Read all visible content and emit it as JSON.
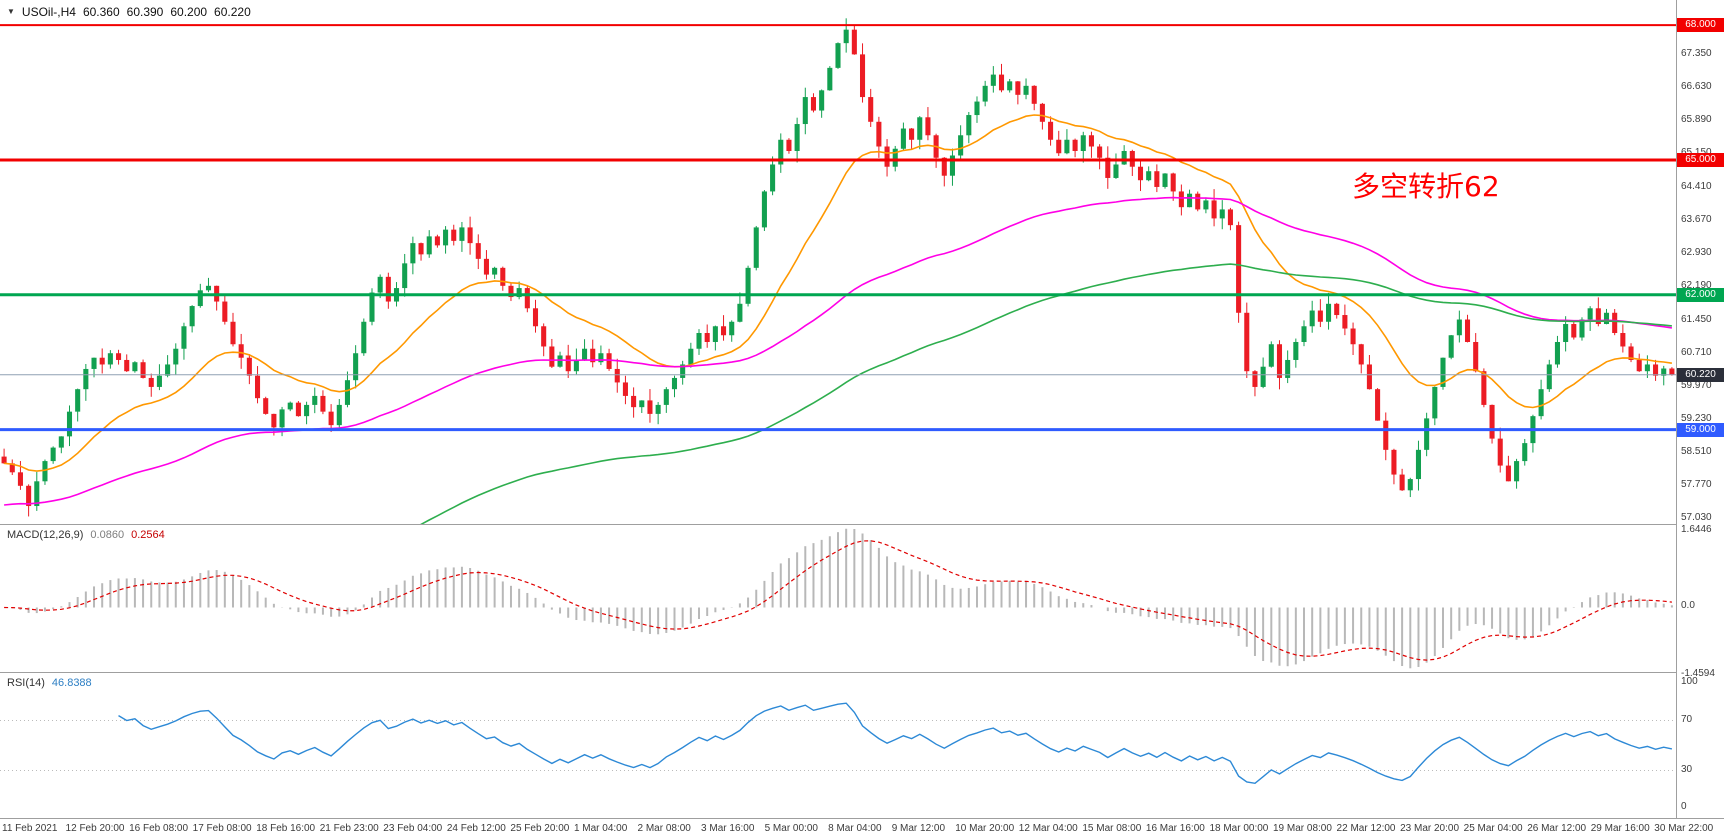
{
  "header": {
    "dropdown_icon": "▼",
    "symbol": "USOil-,H4",
    "open": "60.360",
    "high": "60.390",
    "low": "60.200",
    "close": "60.220"
  },
  "annotation": {
    "text": "多空转折62",
    "color": "#ff0000"
  },
  "panels": {
    "macd": {
      "label": "MACD(12,26,9)",
      "main_value": "0.0860",
      "signal_value": "0.2564"
    },
    "rsi": {
      "label": "RSI(14)",
      "value": "46.8388"
    }
  },
  "chart_data": {
    "type": "candlestick",
    "title": "USOil-,H4",
    "symbol": "USOil-",
    "timeframe": "H4",
    "price_range": [
      56.9,
      68.56
    ],
    "first_open": 58.4,
    "wick_base": 0.26,
    "closes": [
      58.25,
      58.05,
      57.75,
      57.3,
      57.85,
      58.3,
      58.6,
      58.85,
      59.4,
      59.9,
      60.35,
      60.6,
      60.45,
      60.7,
      60.55,
      60.3,
      60.5,
      60.15,
      59.95,
      60.2,
      60.45,
      60.8,
      61.3,
      61.75,
      62.1,
      62.2,
      61.85,
      61.4,
      60.9,
      60.6,
      60.2,
      59.7,
      59.35,
      59.05,
      59.45,
      59.6,
      59.3,
      59.55,
      59.75,
      59.4,
      59.1,
      59.55,
      60.1,
      60.7,
      61.4,
      62.05,
      62.4,
      61.85,
      62.15,
      62.7,
      63.15,
      62.9,
      63.3,
      63.1,
      63.45,
      63.2,
      63.5,
      63.15,
      62.8,
      62.45,
      62.6,
      62.2,
      61.95,
      62.15,
      61.7,
      61.3,
      60.85,
      60.4,
      60.65,
      60.3,
      60.55,
      60.8,
      60.5,
      60.7,
      60.35,
      60.05,
      59.75,
      59.5,
      59.65,
      59.35,
      59.55,
      59.9,
      60.15,
      60.45,
      60.8,
      61.15,
      60.95,
      61.3,
      61.1,
      61.4,
      61.8,
      62.6,
      63.5,
      64.3,
      64.9,
      65.45,
      65.2,
      65.8,
      66.4,
      66.1,
      66.55,
      67.05,
      67.6,
      67.9,
      67.35,
      66.4,
      65.85,
      65.3,
      64.85,
      65.25,
      65.7,
      65.45,
      65.95,
      65.55,
      65.05,
      64.65,
      65.1,
      65.55,
      66.0,
      66.3,
      66.65,
      66.9,
      66.55,
      66.75,
      66.45,
      66.65,
      66.25,
      65.85,
      65.45,
      65.15,
      65.45,
      65.2,
      65.55,
      65.3,
      65.05,
      64.6,
      64.9,
      65.2,
      64.85,
      64.55,
      64.75,
      64.4,
      64.7,
      64.3,
      63.95,
      64.25,
      63.9,
      64.1,
      63.7,
      63.9,
      63.55,
      61.6,
      60.3,
      59.95,
      60.4,
      60.9,
      60.15,
      60.55,
      60.95,
      61.3,
      61.65,
      61.4,
      61.8,
      61.55,
      61.25,
      60.9,
      60.45,
      59.9,
      59.2,
      58.55,
      58.0,
      57.65,
      57.9,
      58.55,
      59.25,
      59.95,
      60.6,
      61.1,
      61.45,
      60.95,
      60.3,
      59.55,
      58.8,
      58.2,
      57.85,
      58.3,
      58.7,
      59.3,
      59.9,
      60.45,
      60.95,
      61.35,
      61.05,
      61.45,
      61.7,
      61.35,
      61.6,
      61.15,
      60.85,
      60.55,
      60.3,
      60.45,
      60.2,
      60.36,
      60.22
    ],
    "last_bar": {
      "open": 60.36,
      "high": 60.39,
      "low": 60.2,
      "close": 60.22
    },
    "current_price": 60.22,
    "hlines": [
      {
        "price": 68.0,
        "color": "#f20000",
        "width": 2,
        "label": "68.000"
      },
      {
        "price": 65.0,
        "color": "#f20000",
        "width": 3,
        "label": "65.000"
      },
      {
        "price": 62.0,
        "color": "#00a651",
        "width": 3,
        "label": "62.000"
      },
      {
        "price": 59.0,
        "color": "#2f5bff",
        "width": 3,
        "label": "59.000"
      }
    ],
    "moving_averages": [
      {
        "name": "ma-fast",
        "period": 20,
        "color": "#ff9800",
        "seed": null
      },
      {
        "name": "ma-medium",
        "period": 80,
        "color": "#ff00e6",
        "seed": 57.3
      },
      {
        "name": "ma-long",
        "period": 130,
        "color": "#2eae4e",
        "seed": 52.5
      }
    ],
    "macd": {
      "fast": 12,
      "slow": 26,
      "signal": 9
    },
    "rsi": {
      "period": 14,
      "levels": [
        70,
        30
      ],
      "range": [
        0,
        100
      ]
    },
    "colors": {
      "up": "#12a050",
      "down": "#ec1c24",
      "macd_hist": "#b8b8b8",
      "macd_signal": "#e00000",
      "rsi_line": "#2d89d6",
      "current_price_line": "#8fa0b3",
      "current_price_tag_bg": "#2b2f3a"
    },
    "price_axis_labels": [
      "67.350",
      "66.630",
      "65.890",
      "65.150",
      "64.410",
      "63.670",
      "62.930",
      "62.190",
      "61.450",
      "60.710",
      "59.970",
      "59.230",
      "58.510",
      "57.770",
      "57.030"
    ],
    "price_axis_tags": [
      {
        "text": "68.000",
        "price": 68.0,
        "bg": "#f20000"
      },
      {
        "text": "65.000",
        "price": 65.0,
        "bg": "#f20000"
      },
      {
        "text": "62.000",
        "price": 62.0,
        "bg": "#00a651"
      },
      {
        "text": "59.000",
        "price": 59.0,
        "bg": "#2f5bff"
      },
      {
        "text": "60.220",
        "price": 60.22,
        "bg": "#2b2f3a"
      }
    ],
    "macd_axis": [
      {
        "text": "1.6446",
        "value": 1.6446
      },
      {
        "text": "0.0",
        "value": 0.0
      },
      {
        "text": "-1.4594",
        "value": -1.4594
      }
    ],
    "rsi_axis": [
      {
        "text": "100",
        "value": 100
      },
      {
        "text": "70",
        "value": 70
      },
      {
        "text": "30",
        "value": 30
      },
      {
        "text": "0",
        "value": 0
      }
    ],
    "x_labels": [
      "11 Feb 2021",
      "12 Feb 20:00",
      "16 Feb 08:00",
      "17 Feb 08:00",
      "18 Feb 16:00",
      "21 Feb 23:00",
      "23 Feb 04:00",
      "24 Feb 12:00",
      "25 Feb 20:00",
      "1 Mar 04:00",
      "2 Mar 08:00",
      "3 Mar 16:00",
      "5 Mar 00:00",
      "8 Mar 04:00",
      "9 Mar 12:00",
      "10 Mar 20:00",
      "12 Mar 04:00",
      "15 Mar 08:00",
      "16 Mar 16:00",
      "18 Mar 00:00",
      "19 Mar 08:00",
      "22 Mar 12:00",
      "23 Mar 20:00",
      "25 Mar 04:00",
      "26 Mar 12:00",
      "29 Mar 16:00",
      "30 Mar 22:00"
    ]
  }
}
